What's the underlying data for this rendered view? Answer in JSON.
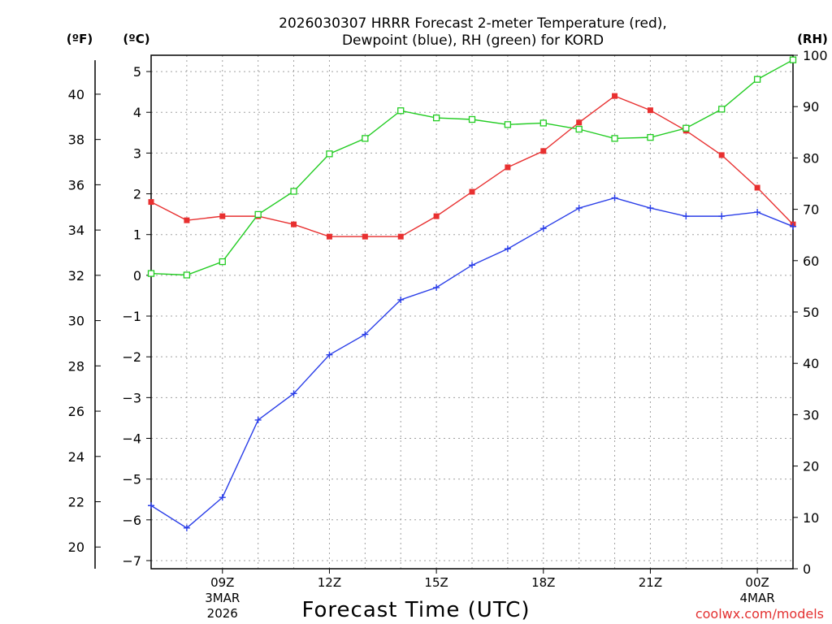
{
  "chart_data": {
    "type": "line",
    "title_line1": "2026030307 HRRR Forecast 2-meter Temperature (red),",
    "title_line2": "Dewpoint (blue), RH (green) for KORD",
    "xlabel": "Forecast Time (UTC)",
    "credit": "coolwx.com/models",
    "units": {
      "fahrenheit": "(ºF)",
      "celsius": "(ºC)",
      "rh": "(RH)"
    },
    "hours": [
      7,
      8,
      9,
      10,
      11,
      12,
      13,
      14,
      15,
      16,
      17,
      18,
      19,
      20,
      21,
      22,
      23,
      24,
      25
    ],
    "xlim": [
      7,
      25
    ],
    "x_ticks": [
      {
        "hour": 9,
        "lines": [
          "09Z",
          "3MAR",
          "2026"
        ]
      },
      {
        "hour": 12,
        "lines": [
          "12Z"
        ]
      },
      {
        "hour": 15,
        "lines": [
          "15Z"
        ]
      },
      {
        "hour": 18,
        "lines": [
          "18Z"
        ]
      },
      {
        "hour": 21,
        "lines": [
          "21Z"
        ]
      },
      {
        "hour": 24,
        "lines": [
          "00Z",
          "4MAR"
        ]
      }
    ],
    "y_left_celsius": {
      "ylim": [
        -7.2,
        5.4
      ],
      "ticks": [
        "-7",
        "-6",
        "-5",
        "-4",
        "-3",
        "-2",
        "-1",
        "0",
        "1",
        "2",
        "3",
        "4",
        "5"
      ]
    },
    "y_left_fahrenheit": {
      "ticks": [
        "20",
        "22",
        "24",
        "26",
        "28",
        "30",
        "32",
        "34",
        "36",
        "38",
        "40"
      ]
    },
    "y_right_rh": {
      "ylim": [
        0,
        100
      ],
      "ticks": [
        "0",
        "10",
        "20",
        "30",
        "40",
        "50",
        "60",
        "70",
        "80",
        "90",
        "100"
      ]
    },
    "series": [
      {
        "name": "2-meter Temperature",
        "unit": "C",
        "color": "#e83030",
        "marker": "filled-square",
        "values": [
          1.8,
          1.35,
          1.45,
          1.45,
          1.25,
          0.95,
          0.95,
          0.95,
          1.45,
          2.05,
          2.65,
          3.05,
          3.75,
          4.4,
          4.05,
          3.55,
          2.95,
          2.15,
          1.25
        ]
      },
      {
        "name": "Dewpoint",
        "unit": "C",
        "color": "#2a3ee8",
        "marker": "plus",
        "values": [
          -5.65,
          -6.2,
          -5.45,
          -3.55,
          -2.9,
          -1.95,
          -1.45,
          -0.6,
          -0.3,
          0.25,
          0.65,
          1.15,
          1.65,
          1.9,
          1.65,
          1.45,
          1.45,
          1.55,
          1.2
        ]
      },
      {
        "name": "RH",
        "unit": "%",
        "color": "#22cc22",
        "marker": "open-square",
        "values": [
          57.5,
          57.2,
          59.8,
          69.0,
          73.5,
          80.8,
          83.8,
          89.2,
          87.8,
          87.5,
          86.5,
          86.8,
          85.6,
          83.8,
          84.0,
          85.8,
          89.5,
          95.3,
          99.1
        ]
      }
    ]
  }
}
